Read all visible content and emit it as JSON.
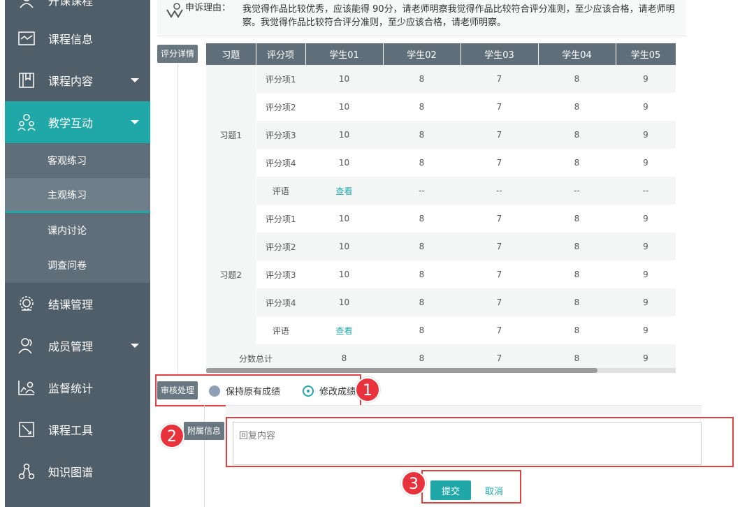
{
  "sidebar": {
    "items": [
      {
        "label": "开课课程",
        "icon": "teacher-icon"
      },
      {
        "label": "课程信息",
        "icon": "course-info-icon"
      },
      {
        "label": "课程内容",
        "icon": "book-icon"
      },
      {
        "label": "教学互动",
        "icon": "people-interact-icon"
      },
      {
        "label": "结课管理",
        "icon": "badge-icon"
      },
      {
        "label": "成员管理",
        "icon": "users-icon"
      },
      {
        "label": "监督统计",
        "icon": "chart-person-icon"
      },
      {
        "label": "课程工具",
        "icon": "tools-icon"
      },
      {
        "label": "知识图谱",
        "icon": "graph-icon"
      }
    ],
    "sub_items": [
      "客观练习",
      "主观练习",
      "课内讨论",
      "调查问卷"
    ]
  },
  "appeal": {
    "label": "申诉理由：",
    "text": "我觉得作品比较优秀，应该能得 90分，请老师明察我觉得作品比较符合评分准则，至少应该合格，请老师明察。我觉得作品比较符合评分准则，至少应该合格，请老师明察。"
  },
  "tags": {
    "detail": "评分详情",
    "review": "审核处理",
    "extra": "附属信息"
  },
  "table": {
    "headers": [
      "习题",
      "评分项",
      "学生01",
      "学生02",
      "学生03",
      "学生04",
      "学生05"
    ],
    "groups": [
      {
        "name": "习题1",
        "rows": [
          {
            "item": "评分项1",
            "scores": [
              "10",
              "8",
              "7",
              "8",
              "9"
            ]
          },
          {
            "item": "评分项2",
            "scores": [
              "10",
              "8",
              "7",
              "8",
              "9"
            ]
          },
          {
            "item": "评分项3",
            "scores": [
              "10",
              "8",
              "7",
              "8",
              "9"
            ]
          },
          {
            "item": "评分项4",
            "scores": [
              "10",
              "8",
              "7",
              "8",
              "9"
            ]
          },
          {
            "item": "评语",
            "scores": [
              "查看",
              "--",
              "--",
              "--",
              "--"
            ]
          }
        ]
      },
      {
        "name": "习题2",
        "rows": [
          {
            "item": "评分项1",
            "scores": [
              "10",
              "8",
              "7",
              "8",
              "9"
            ]
          },
          {
            "item": "评分项2",
            "scores": [
              "10",
              "8",
              "7",
              "8",
              "9"
            ]
          },
          {
            "item": "评分项3",
            "scores": [
              "10",
              "8",
              "7",
              "8",
              "9"
            ]
          },
          {
            "item": "评分项4",
            "scores": [
              "10",
              "8",
              "7",
              "8",
              "9"
            ]
          },
          {
            "item": "评语",
            "scores": [
              "查看",
              "8",
              "7",
              "8",
              "9"
            ]
          }
        ]
      }
    ],
    "total_label": "分数总计",
    "totals": [
      "8",
      "8",
      "7",
      "8",
      "9"
    ]
  },
  "review": {
    "options": [
      "保持原有成绩",
      "修改成绩"
    ],
    "selected": "修改成绩"
  },
  "reply": {
    "placeholder": "回复内容"
  },
  "actions": {
    "submit": "提交",
    "cancel": "取消"
  },
  "badges": [
    "1",
    "2",
    "3"
  ],
  "colors": {
    "accent": "#20a8a8",
    "sidebar": "#4f5e68",
    "highlight": "#e04040"
  }
}
